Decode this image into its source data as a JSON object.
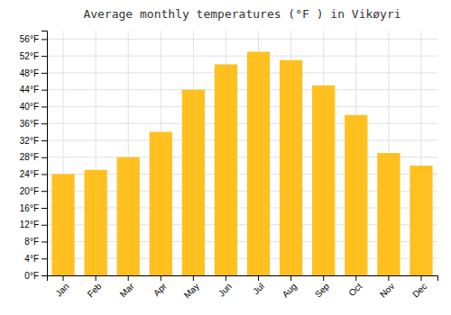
{
  "chart_data": {
    "type": "bar",
    "title": "Average monthly temperatures (°F ) in Vikøyri",
    "categories": [
      "Jan",
      "Feb",
      "Mar",
      "Apr",
      "May",
      "Jun",
      "Jul",
      "Aug",
      "Sep",
      "Oct",
      "Nov",
      "Dec"
    ],
    "values": [
      24,
      25,
      28,
      34,
      44,
      50,
      53,
      51,
      45,
      38,
      29,
      26
    ],
    "color": "#FFC020",
    "ylim": [
      0,
      58
    ],
    "yticks": [
      {
        "value": 0,
        "label": "0°F"
      },
      {
        "value": 4,
        "label": "4°F"
      },
      {
        "value": 8,
        "label": "8°F"
      },
      {
        "value": 12,
        "label": "12°F"
      },
      {
        "value": 16,
        "label": "16°F"
      },
      {
        "value": 20,
        "label": "20°F"
      },
      {
        "value": 24,
        "label": "24°F"
      },
      {
        "value": 28,
        "label": "28°F"
      },
      {
        "value": 32,
        "label": "32°F"
      },
      {
        "value": 36,
        "label": "36°F"
      },
      {
        "value": 40,
        "label": "40°F"
      },
      {
        "value": 44,
        "label": "44°F"
      },
      {
        "value": 48,
        "label": "48°F"
      },
      {
        "value": 52,
        "label": "52°F"
      },
      {
        "value": 56,
        "label": "56°F"
      }
    ],
    "grid": true
  }
}
